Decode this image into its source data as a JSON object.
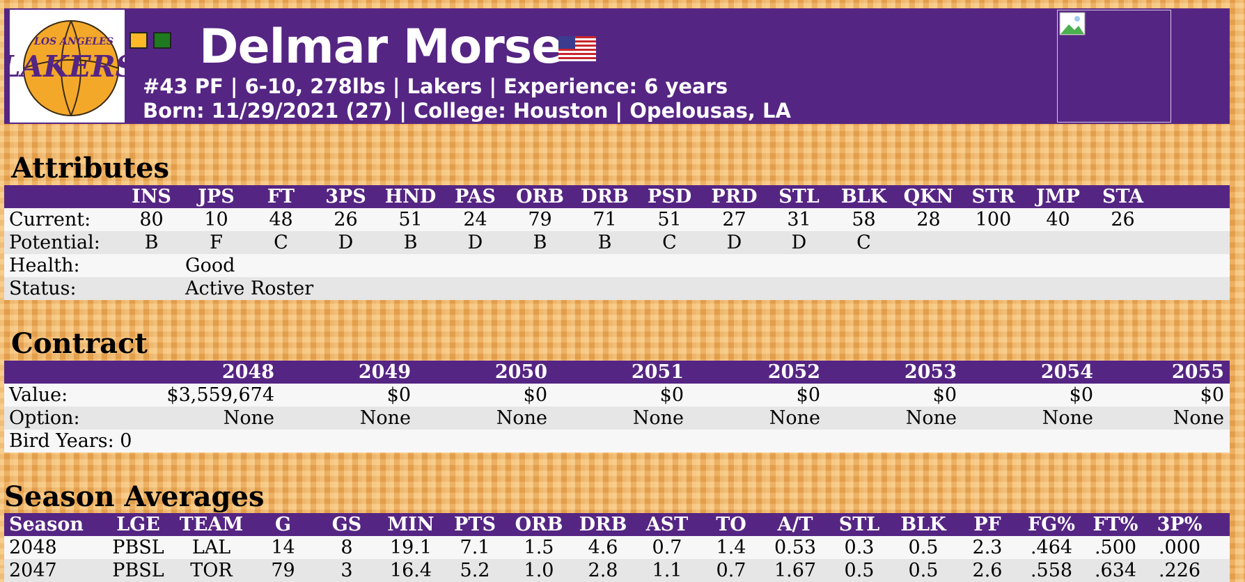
{
  "colors": {
    "header_bg": "#552583",
    "row_light": "#f7f7f7",
    "row_dark": "#e6e6e6"
  },
  "header": {
    "team_logo": "lakers-logo",
    "logo_text_top": "LOS ANGELES",
    "logo_text_main": "LAKERS",
    "team_colors": [
      "#fdb927",
      "#1e7a1e"
    ],
    "name": "Delmar Morse",
    "flag": "us-flag",
    "line1": "#43 PF | 6-10, 278lbs | Lakers | Experience: 6 years",
    "line2": "Born: 11/29/2021 (27) | College: Houston | Opelousas, LA",
    "portrait": "broken-image-icon"
  },
  "attributes": {
    "title": "Attributes",
    "columns": [
      "INS",
      "JPS",
      "FT",
      "3PS",
      "HND",
      "PAS",
      "ORB",
      "DRB",
      "PSD",
      "PRD",
      "STL",
      "BLK",
      "QKN",
      "STR",
      "JMP",
      "STA"
    ],
    "current_label": "Current:",
    "current": [
      "80",
      "10",
      "48",
      "26",
      "51",
      "24",
      "79",
      "71",
      "51",
      "27",
      "31",
      "58",
      "28",
      "100",
      "40",
      "26"
    ],
    "potential_label": "Potential:",
    "potential": [
      "B",
      "F",
      "C",
      "D",
      "B",
      "D",
      "B",
      "B",
      "C",
      "D",
      "D",
      "C",
      "",
      "",
      "",
      ""
    ],
    "health_label": "Health:",
    "health": "Good",
    "status_label": "Status:",
    "status": "Active Roster"
  },
  "contract": {
    "title": "Contract",
    "years": [
      "2048",
      "2049",
      "2050",
      "2051",
      "2052",
      "2053",
      "2054",
      "2055"
    ],
    "value_label": "Value:",
    "values": [
      "$3,559,674",
      "$0",
      "$0",
      "$0",
      "$0",
      "$0",
      "$0",
      "$0"
    ],
    "option_label": "Option:",
    "options": [
      "None",
      "None",
      "None",
      "None",
      "None",
      "None",
      "None",
      "None"
    ],
    "bird_years": "Bird Years: 0"
  },
  "season_averages": {
    "title": "Season Averages",
    "columns": [
      "Season",
      "LGE",
      "TEAM",
      "G",
      "GS",
      "MIN",
      "PTS",
      "ORB",
      "DRB",
      "AST",
      "TO",
      "A/T",
      "STL",
      "BLK",
      "PF",
      "FG%",
      "FT%",
      "3P%"
    ],
    "rows": [
      [
        "2048",
        "PBSL",
        "LAL",
        "14",
        "8",
        "19.1",
        "7.1",
        "1.5",
        "4.6",
        "0.7",
        "1.4",
        "0.53",
        "0.3",
        "0.5",
        "2.3",
        ".464",
        ".500",
        ".000"
      ],
      [
        "2047",
        "PBSL",
        "TOR",
        "79",
        "3",
        "16.4",
        "5.2",
        "1.0",
        "2.8",
        "1.1",
        "0.7",
        "1.67",
        "0.5",
        "0.5",
        "2.6",
        ".558",
        ".634",
        ".226"
      ]
    ]
  }
}
